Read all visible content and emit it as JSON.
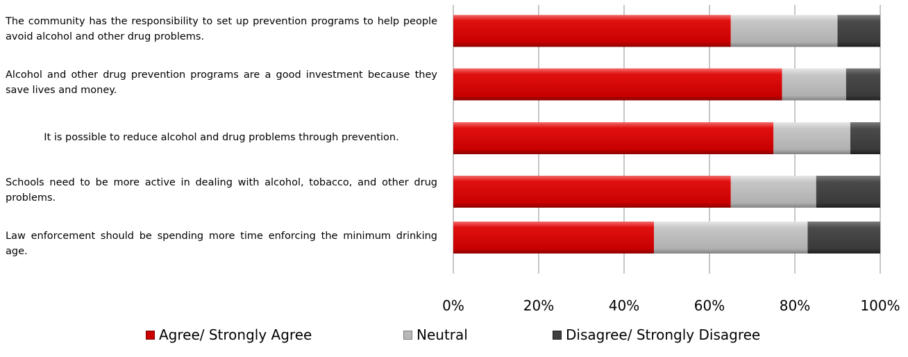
{
  "chart_data": {
    "type": "bar",
    "orientation": "horizontal",
    "stacked": "100%",
    "categories": [
      "The community has the responsibility to set up prevention programs to help people avoid alcohol and other drug problems.",
      "Alcohol and other drug prevention programs are a good investment because they save lives and money.",
      "It is possible to reduce alcohol and drug problems through prevention.",
      "Schools need to be more active in dealing with alcohol, tobacco, and other drug problems.",
      "Law enforcement should be spending more time enforcing the minimum drinking age."
    ],
    "series": [
      {
        "name": "Agree/ Strongly Agree",
        "color": "#cc0000",
        "values": [
          65,
          77,
          75,
          65,
          47
        ]
      },
      {
        "name": "Neutral",
        "color": "#b8b8b8",
        "values": [
          25,
          15,
          18,
          20,
          36
        ]
      },
      {
        "name": "Disagree/ Strongly Disagree",
        "color": "#404040",
        "values": [
          10,
          8,
          7,
          15,
          17
        ]
      }
    ],
    "xlim": [
      0,
      100
    ],
    "x_ticks": [
      "0%",
      "20%",
      "40%",
      "60%",
      "80%",
      "100%"
    ],
    "grid": true,
    "legend_position": "bottom"
  }
}
